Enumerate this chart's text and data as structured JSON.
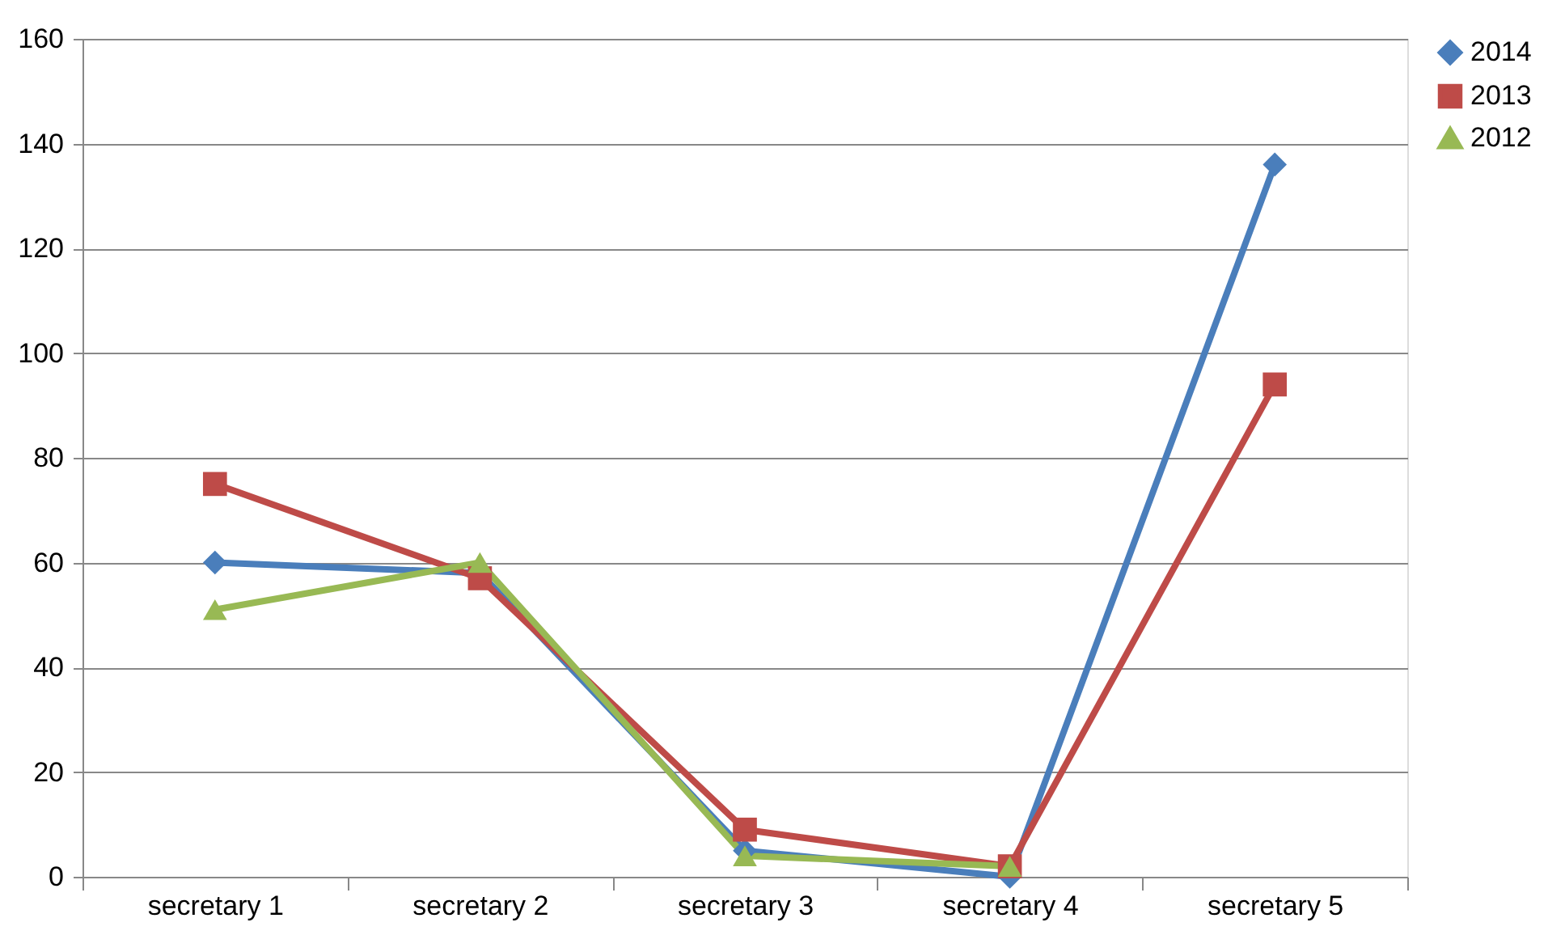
{
  "chart_data": {
    "type": "line",
    "categories": [
      "secretary 1",
      "secretary 2",
      "secretary 3",
      "secretary 4",
      "secretary 5"
    ],
    "series": [
      {
        "name": "2014",
        "color": "#4a7ebb",
        "marker": "diamond",
        "values": [
          60,
          58,
          5,
          0,
          136
        ]
      },
      {
        "name": "2013",
        "color": "#be4b48",
        "marker": "square",
        "values": [
          75,
          57,
          9,
          2,
          94
        ]
      },
      {
        "name": "2012",
        "color": "#98b954",
        "marker": "triangle",
        "values": [
          51,
          60,
          4,
          2,
          null
        ]
      }
    ],
    "ylim": [
      0,
      160
    ],
    "yticks": [
      0,
      20,
      40,
      60,
      80,
      100,
      120,
      140,
      160
    ],
    "grid": "y",
    "legend": "right",
    "line_style": "solid"
  }
}
